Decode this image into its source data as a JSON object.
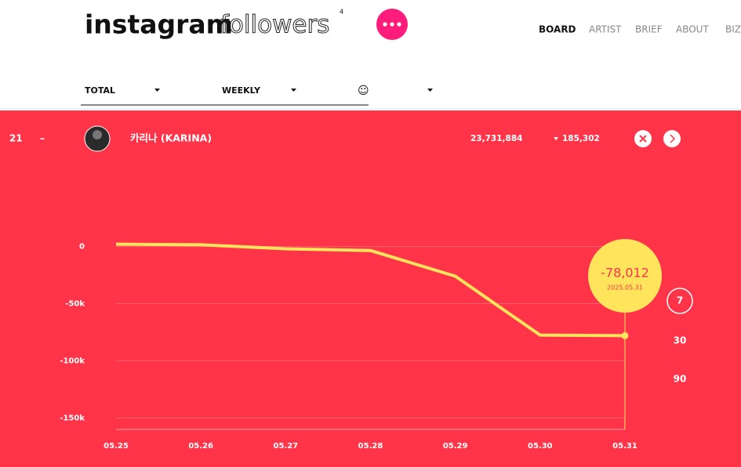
{
  "header": {
    "brand": "instagram",
    "brand_suffix": "followers",
    "badge": 4
  },
  "nav": [
    "BOARD",
    "ARTIST",
    "BRIEF",
    "ABOUT",
    "BIZ"
  ],
  "filters": [
    "TOTAL",
    "WEEKLY",
    "☺"
  ],
  "row": {
    "rank": 21,
    "change": "–",
    "name": "카리나 (KARINA)",
    "followers": "23,731,884",
    "delta": "185,302"
  },
  "ranges": [
    7,
    30,
    90
  ],
  "chart_data": {
    "type": "line",
    "categories": [
      "05.25",
      "05.26",
      "05.27",
      "05.28",
      "05.29",
      "05.30",
      "05.31"
    ],
    "values": [
      2000,
      1500,
      -2000,
      -3500,
      -26000,
      -77500,
      -78012
    ],
    "color": "#ffe45c",
    "ylim": [
      -160000,
      10000
    ],
    "yticks": [
      0,
      {
        "value": -50000,
        "label": "-50k"
      },
      {
        "value": -100000,
        "label": "-100k"
      },
      {
        "value": -150000,
        "label": "-150k"
      }
    ],
    "grid": true,
    "tooltip": {
      "label": "-78,012",
      "date": "2025.05.31"
    }
  }
}
